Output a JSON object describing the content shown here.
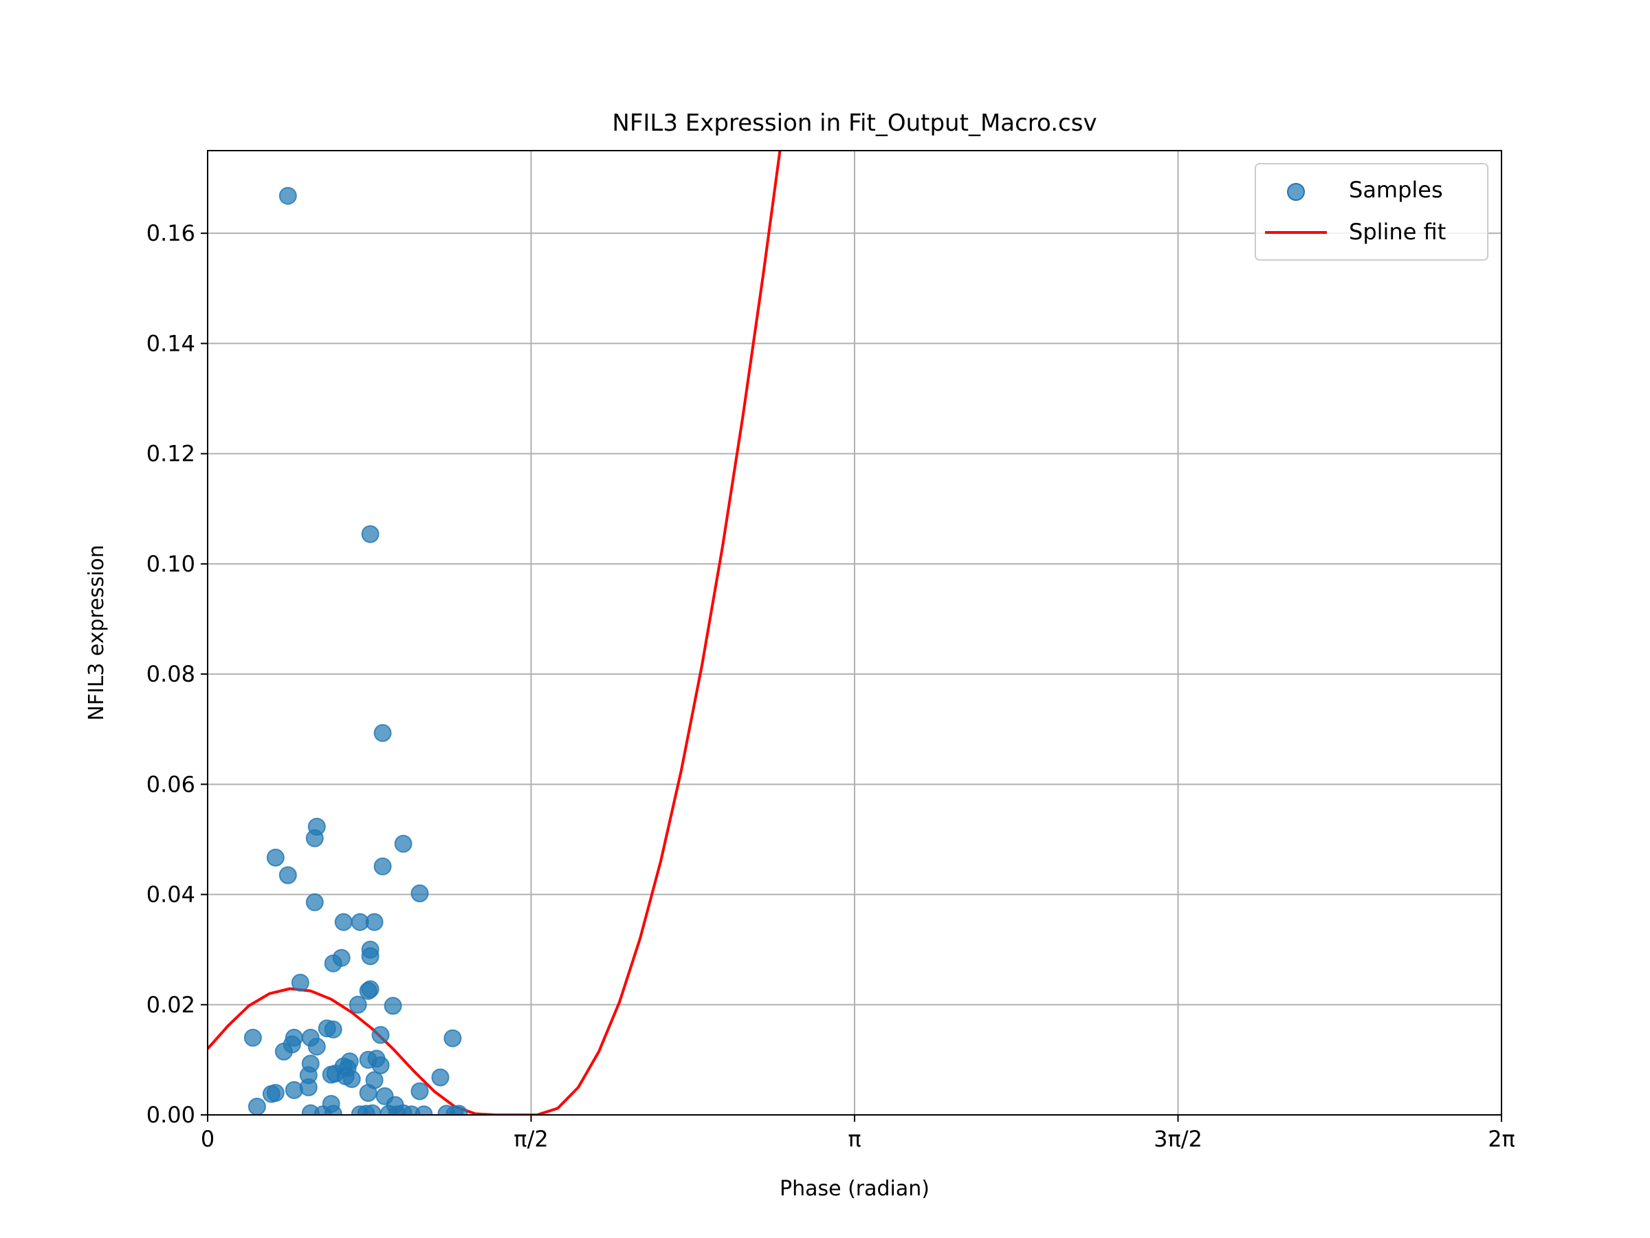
{
  "chart_data": {
    "type": "scatter",
    "title": "NFIL3 Expression in Fit_Output_Macro.csv",
    "xlabel": "Phase (radian)",
    "ylabel": "NFIL3 expression",
    "xlim": [
      0,
      6.2832
    ],
    "ylim": [
      0,
      0.175
    ],
    "grid": true,
    "legend_position": "top-right",
    "x_ticks": [
      {
        "value": 0,
        "label": "0"
      },
      {
        "value": 1.5708,
        "label": "π/2"
      },
      {
        "value": 3.1416,
        "label": "π"
      },
      {
        "value": 4.7124,
        "label": "3π/2"
      },
      {
        "value": 6.2832,
        "label": "2π"
      }
    ],
    "y_ticks": [
      {
        "value": 0.0,
        "label": "0.00"
      },
      {
        "value": 0.02,
        "label": "0.02"
      },
      {
        "value": 0.04,
        "label": "0.04"
      },
      {
        "value": 0.06,
        "label": "0.06"
      },
      {
        "value": 0.08,
        "label": "0.08"
      },
      {
        "value": 0.1,
        "label": "0.10"
      },
      {
        "value": 0.12,
        "label": "0.12"
      },
      {
        "value": 0.14,
        "label": "0.14"
      },
      {
        "value": 0.16,
        "label": "0.16"
      }
    ],
    "series": [
      {
        "name": "Samples",
        "kind": "scatter",
        "color": "#1f77b4",
        "points": [
          [
            0.39,
            0.1668
          ],
          [
            0.79,
            0.1054
          ],
          [
            0.85,
            0.0693
          ],
          [
            0.33,
            0.0467
          ],
          [
            0.52,
            0.0502
          ],
          [
            0.53,
            0.0523
          ],
          [
            0.39,
            0.0435
          ],
          [
            0.95,
            0.0492
          ],
          [
            0.85,
            0.0451
          ],
          [
            1.03,
            0.0402
          ],
          [
            0.52,
            0.0386
          ],
          [
            0.66,
            0.035
          ],
          [
            0.74,
            0.035
          ],
          [
            0.81,
            0.035
          ],
          [
            0.79,
            0.03
          ],
          [
            0.65,
            0.0285
          ],
          [
            0.61,
            0.0275
          ],
          [
            0.79,
            0.0288
          ],
          [
            0.79,
            0.0228
          ],
          [
            0.78,
            0.0225
          ],
          [
            0.45,
            0.024
          ],
          [
            0.73,
            0.02
          ],
          [
            0.9,
            0.0198
          ],
          [
            0.58,
            0.0157
          ],
          [
            0.61,
            0.0155
          ],
          [
            0.22,
            0.014
          ],
          [
            0.42,
            0.014
          ],
          [
            0.5,
            0.014
          ],
          [
            0.84,
            0.0145
          ],
          [
            1.19,
            0.0139
          ],
          [
            0.37,
            0.0115
          ],
          [
            0.41,
            0.0128
          ],
          [
            0.53,
            0.0124
          ],
          [
            0.78,
            0.01
          ],
          [
            0.82,
            0.0102
          ],
          [
            0.84,
            0.009
          ],
          [
            0.69,
            0.0097
          ],
          [
            0.66,
            0.0088
          ],
          [
            0.68,
            0.0085
          ],
          [
            0.5,
            0.0093
          ],
          [
            0.49,
            0.0072
          ],
          [
            0.6,
            0.0073
          ],
          [
            0.62,
            0.0075
          ],
          [
            0.67,
            0.007
          ],
          [
            0.7,
            0.0065
          ],
          [
            0.81,
            0.0063
          ],
          [
            1.13,
            0.0068
          ],
          [
            0.42,
            0.0045
          ],
          [
            0.49,
            0.005
          ],
          [
            0.78,
            0.004
          ],
          [
            0.86,
            0.0034
          ],
          [
            0.31,
            0.0038
          ],
          [
            0.33,
            0.004
          ],
          [
            1.03,
            0.0043
          ],
          [
            0.24,
            0.0015
          ],
          [
            0.6,
            0.002
          ],
          [
            0.91,
            0.0018
          ],
          [
            0.5,
            0.0003
          ],
          [
            0.56,
            0.0001
          ],
          [
            0.61,
            0.0002
          ],
          [
            0.74,
            0.0001
          ],
          [
            0.77,
            0.0002
          ],
          [
            0.8,
            0.0003
          ],
          [
            0.88,
            0.0002
          ],
          [
            0.92,
            0.0001
          ],
          [
            0.95,
            0.0003
          ],
          [
            0.99,
            0.0001
          ],
          [
            1.05,
            0.0001
          ],
          [
            1.16,
            0.0002
          ],
          [
            1.2,
            0.0001
          ],
          [
            1.22,
            0.0002
          ]
        ]
      },
      {
        "name": "Spline fit",
        "kind": "line",
        "color": "#ff0000",
        "points": [
          [
            0.0,
            0.012
          ],
          [
            0.1,
            0.0162
          ],
          [
            0.2,
            0.0198
          ],
          [
            0.3,
            0.022
          ],
          [
            0.4,
            0.0229
          ],
          [
            0.5,
            0.0225
          ],
          [
            0.6,
            0.021
          ],
          [
            0.7,
            0.0186
          ],
          [
            0.8,
            0.0156
          ],
          [
            0.9,
            0.012
          ],
          [
            1.0,
            0.008
          ],
          [
            1.1,
            0.0043
          ],
          [
            1.2,
            0.0015
          ],
          [
            1.3,
            0.0002
          ],
          [
            1.4,
            0.0
          ],
          [
            1.5,
            0.0
          ],
          [
            1.6,
            0.0
          ],
          [
            1.7,
            0.0012
          ],
          [
            1.8,
            0.005
          ],
          [
            1.9,
            0.0115
          ],
          [
            2.0,
            0.0205
          ],
          [
            2.1,
            0.032
          ],
          [
            2.2,
            0.046
          ],
          [
            2.3,
            0.0625
          ],
          [
            2.4,
            0.0815
          ],
          [
            2.5,
            0.103
          ],
          [
            2.6,
            0.127
          ],
          [
            2.7,
            0.153
          ],
          [
            2.79,
            0.178
          ]
        ]
      }
    ]
  }
}
